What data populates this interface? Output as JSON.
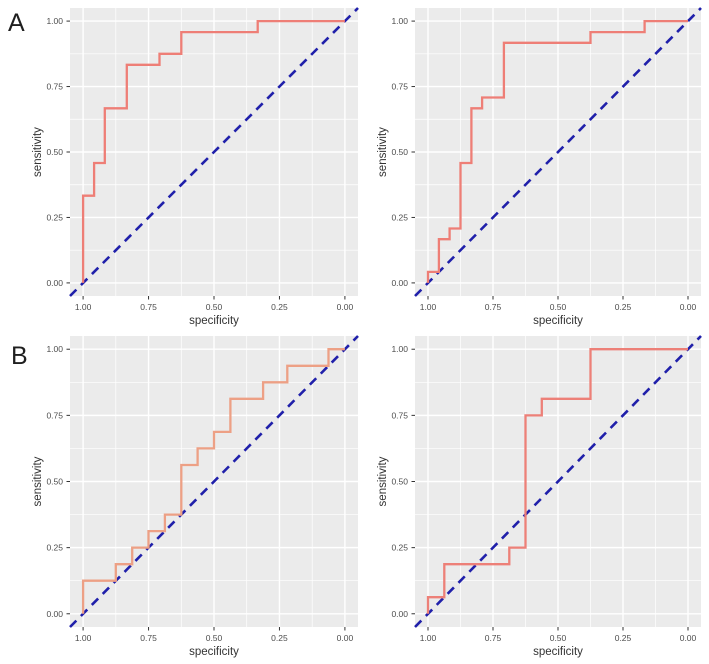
{
  "figure": {
    "row_label_a": "A",
    "row_label_b": "B"
  },
  "axes": {
    "x_label": "specificity",
    "y_label": "sensitivity",
    "x_tick_labels": [
      "1.00",
      "0.75",
      "0.50",
      "0.25",
      "0.00"
    ],
    "x_tick_values": [
      1.0,
      0.75,
      0.5,
      0.25,
      0.0
    ],
    "y_tick_labels": [
      "0.00",
      "0.25",
      "0.50",
      "0.75",
      "1.00"
    ],
    "y_tick_values": [
      0.0,
      0.25,
      0.5,
      0.75,
      1.0
    ],
    "minor_grid_values": [
      0.125,
      0.375,
      0.625,
      0.875
    ],
    "x_reversed": true,
    "xlim": [
      1.0,
      0.0
    ],
    "ylim": [
      0.0,
      1.0
    ]
  },
  "colors": {
    "panel_background": "#ebebeb",
    "grid": "#ffffff",
    "diagonal": "#2020aa",
    "tick_text": "#4d4d4d",
    "axis_title_text": "#333333",
    "tick_mark": "#333333"
  },
  "chart_data": [
    {
      "id": "roc-a-left",
      "row_label": "A",
      "position": "top-left",
      "type": "line",
      "subtype": "roc-step-curve",
      "title": "",
      "xlabel": "specificity",
      "ylabel": "sensitivity",
      "grid": true,
      "legend": false,
      "curve_color": "#ee7e76",
      "reference_line": {
        "style": "dashed",
        "from_spec_sens": [
          1,
          0
        ],
        "to_spec_sens": [
          0,
          1
        ]
      },
      "points_spec_sens": [
        [
          1,
          0
        ],
        [
          1,
          0.333
        ],
        [
          0.958,
          0.333
        ],
        [
          0.958,
          0.458
        ],
        [
          0.917,
          0.458
        ],
        [
          0.917,
          0.667
        ],
        [
          0.833,
          0.667
        ],
        [
          0.833,
          0.833
        ],
        [
          0.708,
          0.833
        ],
        [
          0.708,
          0.875
        ],
        [
          0.625,
          0.875
        ],
        [
          0.625,
          0.958
        ],
        [
          0.333,
          0.958
        ],
        [
          0.333,
          1
        ],
        [
          0,
          1
        ]
      ]
    },
    {
      "id": "roc-a-right",
      "row_label": "A",
      "position": "top-right",
      "type": "line",
      "subtype": "roc-step-curve",
      "title": "",
      "xlabel": "specificity",
      "ylabel": "sensitivity",
      "grid": true,
      "legend": false,
      "curve_color": "#ee7e76",
      "reference_line": {
        "style": "dashed",
        "from_spec_sens": [
          1,
          0
        ],
        "to_spec_sens": [
          0,
          1
        ]
      },
      "points_spec_sens": [
        [
          1,
          0
        ],
        [
          1,
          0.042
        ],
        [
          0.958,
          0.042
        ],
        [
          0.958,
          0.167
        ],
        [
          0.917,
          0.167
        ],
        [
          0.917,
          0.208
        ],
        [
          0.875,
          0.208
        ],
        [
          0.875,
          0.458
        ],
        [
          0.833,
          0.458
        ],
        [
          0.833,
          0.667
        ],
        [
          0.792,
          0.667
        ],
        [
          0.792,
          0.708
        ],
        [
          0.708,
          0.708
        ],
        [
          0.708,
          0.917
        ],
        [
          0.375,
          0.917
        ],
        [
          0.375,
          0.958
        ],
        [
          0.167,
          0.958
        ],
        [
          0.167,
          1
        ],
        [
          0,
          1
        ]
      ]
    },
    {
      "id": "roc-b-left",
      "row_label": "B",
      "position": "bottom-left",
      "type": "line",
      "subtype": "roc-step-curve",
      "title": "",
      "xlabel": "specificity",
      "ylabel": "sensitivity",
      "grid": true,
      "legend": false,
      "curve_color": "#eda085",
      "reference_line": {
        "style": "dashed",
        "from_spec_sens": [
          1,
          0
        ],
        "to_spec_sens": [
          0,
          1
        ]
      },
      "points_spec_sens": [
        [
          1,
          0
        ],
        [
          1,
          0.125
        ],
        [
          0.875,
          0.125
        ],
        [
          0.875,
          0.1875
        ],
        [
          0.8125,
          0.1875
        ],
        [
          0.8125,
          0.25
        ],
        [
          0.75,
          0.25
        ],
        [
          0.75,
          0.3125
        ],
        [
          0.6875,
          0.3125
        ],
        [
          0.6875,
          0.375
        ],
        [
          0.625,
          0.375
        ],
        [
          0.625,
          0.5625
        ],
        [
          0.5625,
          0.5625
        ],
        [
          0.5625,
          0.625
        ],
        [
          0.5,
          0.625
        ],
        [
          0.5,
          0.6875
        ],
        [
          0.4375,
          0.6875
        ],
        [
          0.4375,
          0.8125
        ],
        [
          0.3125,
          0.8125
        ],
        [
          0.3125,
          0.875
        ],
        [
          0.22,
          0.875
        ],
        [
          0.22,
          0.9375
        ],
        [
          0.0625,
          0.9375
        ],
        [
          0.0625,
          1
        ],
        [
          0,
          1
        ]
      ]
    },
    {
      "id": "roc-b-right",
      "row_label": "B",
      "position": "bottom-right",
      "type": "line",
      "subtype": "roc-step-curve",
      "title": "",
      "xlabel": "specificity",
      "ylabel": "sensitivity",
      "grid": true,
      "legend": false,
      "curve_color": "#ed8078",
      "reference_line": {
        "style": "dashed",
        "from_spec_sens": [
          1,
          0
        ],
        "to_spec_sens": [
          0,
          1
        ]
      },
      "points_spec_sens": [
        [
          1,
          0
        ],
        [
          1,
          0.0625
        ],
        [
          0.9375,
          0.0625
        ],
        [
          0.9375,
          0.1875
        ],
        [
          0.6875,
          0.1875
        ],
        [
          0.6875,
          0.25
        ],
        [
          0.625,
          0.25
        ],
        [
          0.625,
          0.75
        ],
        [
          0.5625,
          0.75
        ],
        [
          0.5625,
          0.8125
        ],
        [
          0.375,
          0.8125
        ],
        [
          0.375,
          1
        ],
        [
          0,
          1
        ]
      ]
    }
  ]
}
